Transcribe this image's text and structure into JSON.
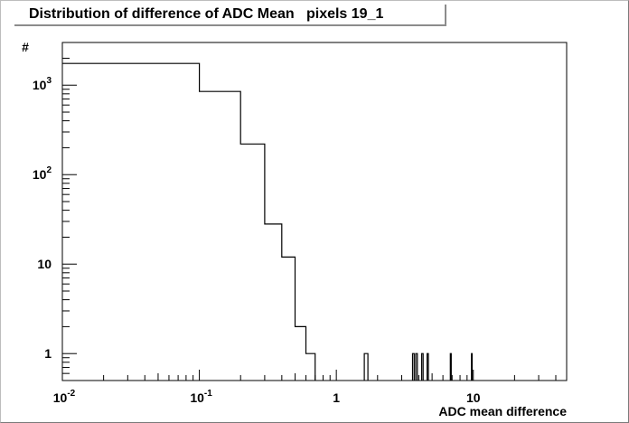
{
  "title": "Distribution of difference of ADC Mean   pixels 19_1",
  "chart_data": {
    "type": "histogram",
    "title": "Distribution of difference of ADC Mean   pixels 19_1",
    "xlabel": "ADC mean difference",
    "ylabel": "#",
    "xscale": "log",
    "yscale": "log",
    "xlim": [
      0.01,
      48
    ],
    "ylim": [
      0.5,
      3000
    ],
    "grid": false,
    "bin_width": 0.1,
    "bins": [
      {
        "x0": 0.0,
        "x1": 0.1,
        "count": 1750
      },
      {
        "x0": 0.1,
        "x1": 0.2,
        "count": 850
      },
      {
        "x0": 0.2,
        "x1": 0.3,
        "count": 220
      },
      {
        "x0": 0.3,
        "x1": 0.4,
        "count": 28
      },
      {
        "x0": 0.4,
        "x1": 0.5,
        "count": 12
      },
      {
        "x0": 0.5,
        "x1": 0.6,
        "count": 2
      },
      {
        "x0": 0.6,
        "x1": 0.7,
        "count": 1
      },
      {
        "x0": 1.6,
        "x1": 1.7,
        "count": 1
      },
      {
        "x0": 3.6,
        "x1": 3.7,
        "count": 1
      },
      {
        "x0": 3.8,
        "x1": 3.9,
        "count": 1
      },
      {
        "x0": 4.2,
        "x1": 4.3,
        "count": 1
      },
      {
        "x0": 4.6,
        "x1": 4.7,
        "count": 1
      },
      {
        "x0": 6.8,
        "x1": 6.9,
        "count": 1
      },
      {
        "x0": 9.7,
        "x1": 9.8,
        "count": 1
      }
    ],
    "x_tick_labels": [
      {
        "value": 0.01,
        "base": "10",
        "exp": "-2"
      },
      {
        "value": 0.1,
        "base": "10",
        "exp": "-1"
      },
      {
        "value": 1,
        "base": "1",
        "exp": ""
      },
      {
        "value": 10,
        "base": "10",
        "exp": ""
      }
    ],
    "y_tick_labels": [
      {
        "value": 1,
        "base": "1",
        "exp": ""
      },
      {
        "value": 10,
        "base": "10",
        "exp": ""
      },
      {
        "value": 100,
        "base": "10",
        "exp": "2"
      },
      {
        "value": 1000,
        "base": "10",
        "exp": "3"
      }
    ]
  },
  "colors": {
    "line": "#000000",
    "background": "#ffffff",
    "title_shadow": "#8c8c8c"
  }
}
